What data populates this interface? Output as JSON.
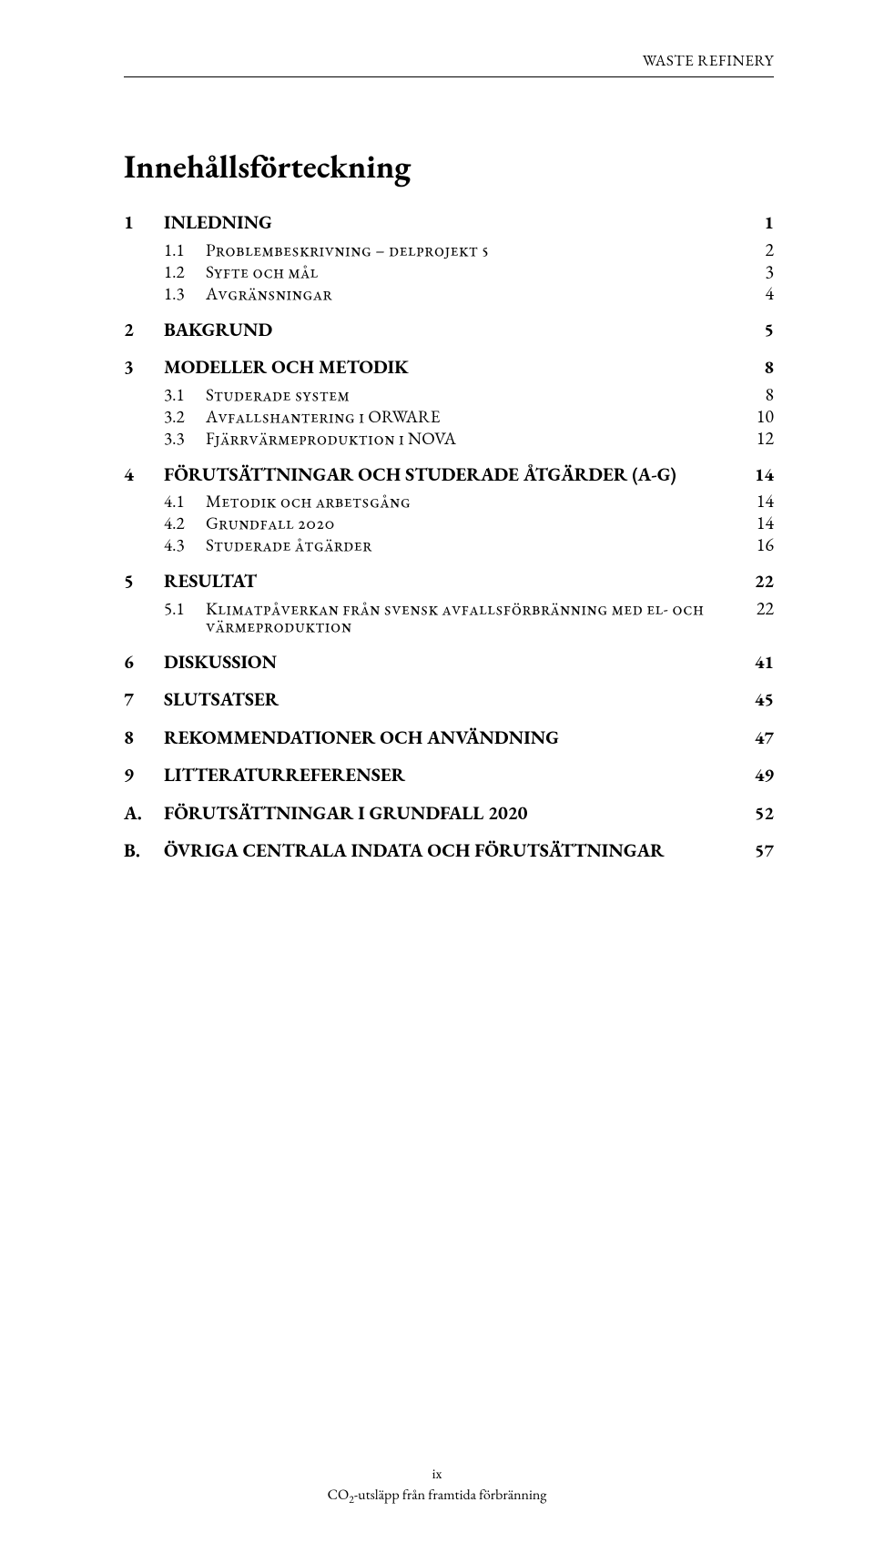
{
  "header": {
    "running": "WASTE REFINERY"
  },
  "title": "Innehållsförteckning",
  "toc": [
    {
      "lvl": 1,
      "num": "1",
      "label": "INLEDNING",
      "page": "1"
    },
    {
      "lvl": 2,
      "num": "1.1",
      "label": "Problembeskrivning – delprojekt 5",
      "page": "2"
    },
    {
      "lvl": 2,
      "num": "1.2",
      "label": "Syfte och mål",
      "page": "3"
    },
    {
      "lvl": 2,
      "num": "1.3",
      "label": "Avgränsningar",
      "page": "4"
    },
    {
      "lvl": 1,
      "num": "2",
      "label": "BAKGRUND",
      "page": "5"
    },
    {
      "lvl": 1,
      "num": "3",
      "label": "MODELLER OCH METODIK",
      "page": "8"
    },
    {
      "lvl": 2,
      "num": "3.1",
      "label": "Studerade system",
      "page": "8"
    },
    {
      "lvl": 2,
      "num": "3.2",
      "label": "Avfallshantering i ORWARE",
      "page": "10"
    },
    {
      "lvl": 2,
      "num": "3.3",
      "label": "Fjärrvärmeproduktion i NOVA",
      "page": "12"
    },
    {
      "lvl": 1,
      "num": "4",
      "label": "FÖRUTSÄTTNINGAR OCH STUDERADE ÅTGÄRDER (A-G)",
      "page": "14"
    },
    {
      "lvl": 2,
      "num": "4.1",
      "label": "Metodik och arbetsgång",
      "page": "14"
    },
    {
      "lvl": 2,
      "num": "4.2",
      "label": "Grundfall 2020",
      "page": "14"
    },
    {
      "lvl": 2,
      "num": "4.3",
      "label": "Studerade åtgärder",
      "page": "16"
    },
    {
      "lvl": 1,
      "num": "5",
      "label": "RESULTAT",
      "page": "22"
    },
    {
      "lvl": 2,
      "num": "5.1",
      "label": "Klimatpåverkan från svensk avfallsförbränning med el- och värmeproduktion",
      "page": "22"
    },
    {
      "lvl": 1,
      "num": "6",
      "label": "DISKUSSION",
      "page": "41"
    },
    {
      "lvl": 1,
      "num": "7",
      "label": "SLUTSATSER",
      "page": "45"
    },
    {
      "lvl": 1,
      "num": "8",
      "label": "REKOMMENDATIONER OCH ANVÄNDNING",
      "page": "47"
    },
    {
      "lvl": 1,
      "num": "9",
      "label": "LITTERATURREFERENSER",
      "page": "49"
    },
    {
      "lvl": 1,
      "num": "A.",
      "label": "FÖRUTSÄTTNINGAR I GRUNDFALL 2020",
      "page": "52"
    },
    {
      "lvl": 1,
      "num": "B.",
      "label": "ÖVRIGA CENTRALA INDATA OCH FÖRUTSÄTTNINGAR",
      "page": "57"
    }
  ],
  "footer": {
    "roman": "ix",
    "line_pre": "CO",
    "line_sub": "2",
    "line_post": "-utsläpp från framtida förbränning"
  }
}
